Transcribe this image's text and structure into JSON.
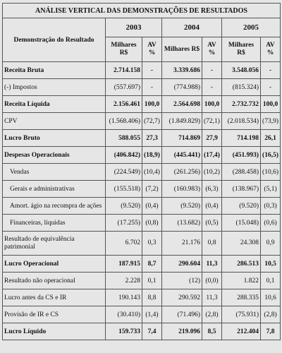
{
  "title": "ANÁLISE VERTICAL DAS DEMONSTRAÇÕES DE RESULTADOS",
  "header": {
    "label": "Demonstração do Resultado",
    "years": [
      "2003",
      "2004",
      "2005"
    ],
    "sub": [
      "Milhares R$",
      "AV %"
    ]
  },
  "table": {
    "rows": [
      {
        "label": "Receita Bruta",
        "bold": true,
        "indent": false,
        "cells": [
          "2.714.158",
          "-",
          "3.339.686",
          "-",
          "3.548.056",
          "-"
        ]
      },
      {
        "label": "(-) Impostos",
        "bold": false,
        "indent": false,
        "cells": [
          "(557.697)",
          "-",
          "(774.988)",
          "-",
          "(815.324)",
          "-"
        ]
      },
      {
        "label": "Receita Líquida",
        "bold": true,
        "indent": false,
        "cells": [
          "2.156.461",
          "100,0",
          "2.564.698",
          "100,0",
          "2.732.732",
          "100,0"
        ]
      },
      {
        "label": "CPV",
        "bold": false,
        "indent": false,
        "cells": [
          "(1.568.406)",
          "(72,7)",
          "(1.849.829)",
          "(72,1)",
          "(2.018.534)",
          "(73,9)"
        ]
      },
      {
        "label": "Lucro Bruto",
        "bold": true,
        "indent": false,
        "cells": [
          "588.055",
          "27,3",
          "714.869",
          "27,9",
          "714.198",
          "26,1"
        ]
      },
      {
        "label": "Despesas Operacionais",
        "bold": true,
        "indent": false,
        "cells": [
          "(406.842)",
          "(18,9)",
          "(445.441)",
          "(17,4)",
          "(451.993)",
          "(16,5)"
        ]
      },
      {
        "label": "Vendas",
        "bold": false,
        "indent": true,
        "cells": [
          "(224.549)",
          "(10,4)",
          "(261.256)",
          "(10,2)",
          "(288.458)",
          "(10,6)"
        ]
      },
      {
        "label": "Gerais e administrativas",
        "bold": false,
        "indent": true,
        "cells": [
          "(155.518)",
          "(7,2)",
          "(160.983)",
          "(6,3)",
          "(138.967)",
          "(5,1)"
        ]
      },
      {
        "label": "Amort. ágio na recompra de ações",
        "bold": false,
        "indent": true,
        "cells": [
          "(9.520)",
          "(0,4)",
          "(9.520)",
          "(0,4)",
          "(9.520)",
          "(0,3)"
        ]
      },
      {
        "label": "Financeiras, líquidas",
        "bold": false,
        "indent": true,
        "cells": [
          "(17.255)",
          "(0,8)",
          "(13.682)",
          "(0,5)",
          "(15.048)",
          "(0,6)"
        ]
      },
      {
        "label": "Resultado de equivalência patrimonial",
        "bold": false,
        "indent": false,
        "cells": [
          "6.702",
          "0,3",
          "21.176",
          "0,8",
          "24.308",
          "0,9"
        ]
      },
      {
        "label": "Lucro Operacional",
        "bold": true,
        "indent": false,
        "cells": [
          "187.915",
          "8,7",
          "290.604",
          "11,3",
          "286.513",
          "10,5"
        ]
      },
      {
        "label": "Resultado não operacional",
        "bold": false,
        "indent": false,
        "cells": [
          "2.228",
          "0,1",
          "(12)",
          "(0,0)",
          "1.822",
          "0,1"
        ]
      },
      {
        "label": "Lucro antes da CS e IR",
        "bold": false,
        "indent": false,
        "cells": [
          "190.143",
          "8,8",
          "290.592",
          "11,3",
          "288.335",
          "10,6"
        ]
      },
      {
        "label": "Provisão de IR e CS",
        "bold": false,
        "indent": false,
        "cells": [
          "(30.410)",
          "(1,4)",
          "(71.496)",
          "(2,8)",
          "(75.931)",
          "(2,8)"
        ]
      },
      {
        "label": "Lucro Líquido",
        "bold": true,
        "indent": false,
        "cells": [
          "159.733",
          "7,4",
          "219.096",
          "8,5",
          "212.404",
          "7,8"
        ]
      }
    ]
  }
}
